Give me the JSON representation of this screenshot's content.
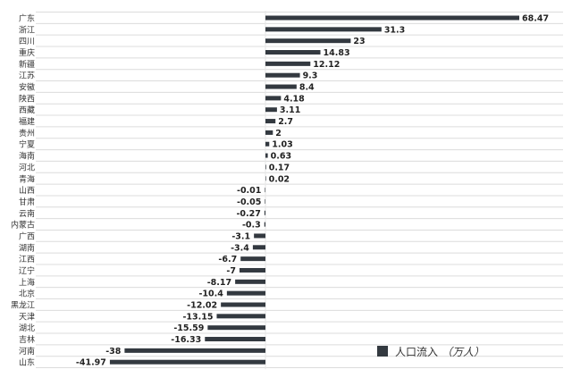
{
  "chart_data": {
    "type": "bar",
    "orientation": "horizontal",
    "categories": [
      "广东",
      "浙江",
      "四川",
      "重庆",
      "新疆",
      "江苏",
      "安徽",
      "陕西",
      "西藏",
      "福建",
      "贵州",
      "宁夏",
      "海南",
      "河北",
      "青海",
      "山西",
      "甘肃",
      "云南",
      "内蒙古",
      "广西",
      "湖南",
      "江西",
      "辽宁",
      "上海",
      "北京",
      "黑龙江",
      "天津",
      "湖北",
      "吉林",
      "河南",
      "山东"
    ],
    "labels": [
      "68.47",
      "31.3",
      "23",
      "14.83",
      "12.12",
      "9.3",
      "8.4",
      "4.18",
      "3.11",
      "2.7",
      "2",
      "1.03",
      "0.63",
      "0.17",
      "0.02",
      "-0.01",
      "-0.05",
      "-0.27",
      "-0.3",
      "-3.1",
      "-3.4",
      "-6.7",
      "-7",
      "-8.17",
      "-10.4",
      "-12.02",
      "-13.15",
      "-15.59",
      "-16.33",
      "-38",
      "-41.97"
    ],
    "series": [
      {
        "name": "人口流入（万人）",
        "values": [
          68.47,
          31.3,
          23,
          14.83,
          12.12,
          9.3,
          8.4,
          4.18,
          3.11,
          2.7,
          2,
          1.03,
          0.63,
          0.17,
          0.02,
          -0.01,
          -0.05,
          -0.27,
          -0.3,
          -3.1,
          -3.4,
          -6.7,
          -7,
          -8.17,
          -10.4,
          -12.02,
          -13.15,
          -15.59,
          -16.33,
          -38,
          -41.97
        ]
      }
    ],
    "xlim": [
      -44,
      72
    ],
    "bar_color": "#333940",
    "grid_color": "#dcdcdc",
    "grid": true,
    "legend_position": "bottom-right",
    "legend_label": "人口流入",
    "legend_unit": "（万人）"
  }
}
